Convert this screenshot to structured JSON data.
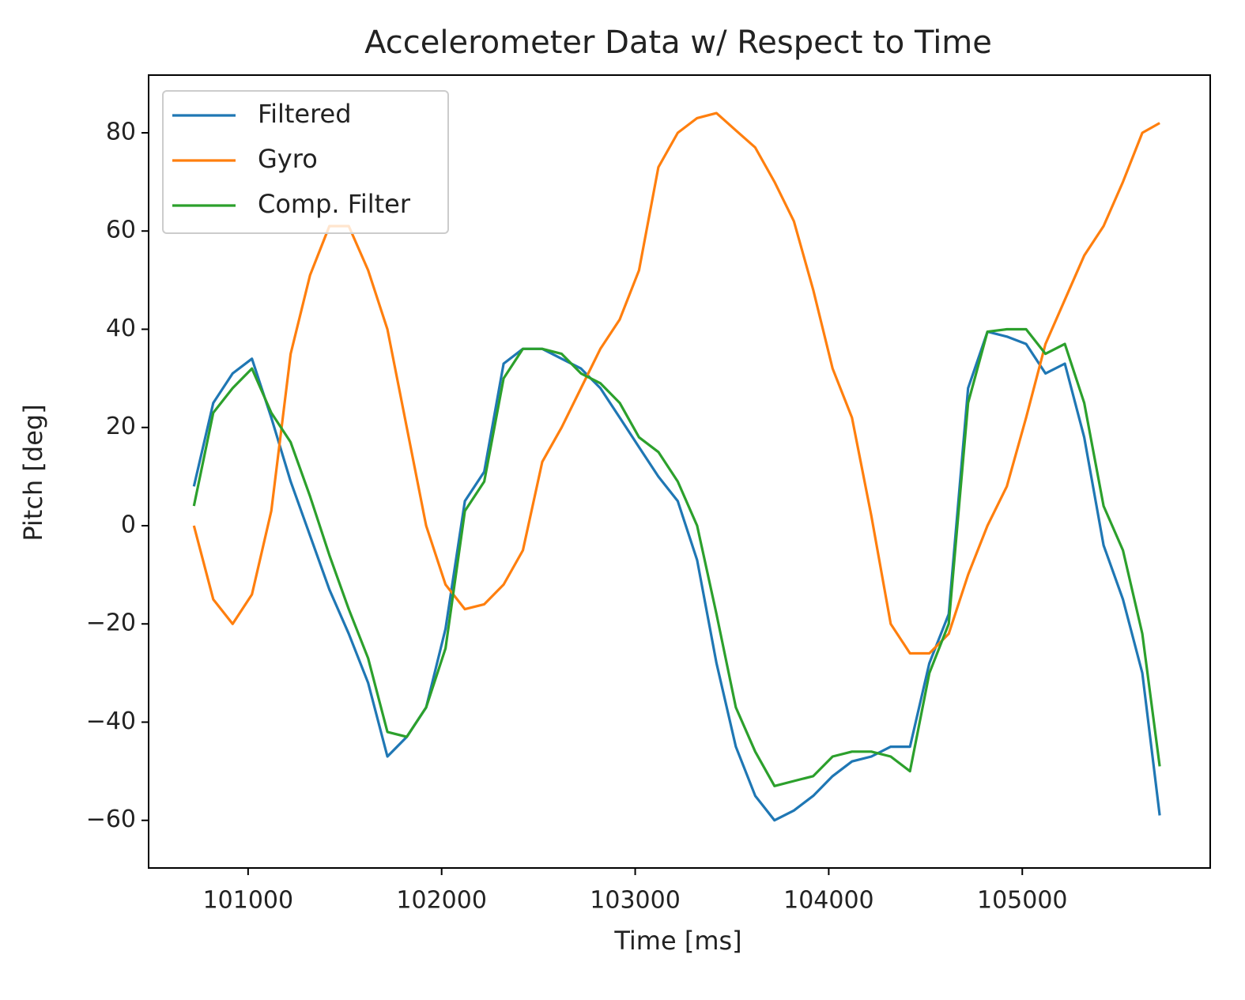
{
  "chart_data": {
    "type": "line",
    "title": "Accelerometer Data w/ Respect to Time",
    "xlabel": "Time [ms]",
    "ylabel": "Pitch [deg]",
    "x": [
      100720,
      100820,
      100920,
      101020,
      101120,
      101220,
      101320,
      101420,
      101520,
      101620,
      101720,
      101820,
      101920,
      102020,
      102120,
      102220,
      102320,
      102420,
      102520,
      102620,
      102720,
      102820,
      102920,
      103020,
      103120,
      103220,
      103320,
      103420,
      103520,
      103620,
      103720,
      103820,
      103920,
      104020,
      104120,
      104220,
      104320,
      104420,
      104520,
      104620,
      104720,
      104820,
      104920,
      105020,
      105120,
      105220,
      105320,
      105420,
      105520,
      105620,
      105710
    ],
    "series": [
      {
        "name": "Filtered",
        "color": "#1f77b4",
        "values": [
          8,
          25,
          31,
          34,
          22,
          9,
          -2,
          -13,
          -22,
          -32,
          -47,
          -43,
          -37,
          -21,
          5,
          11,
          33,
          36,
          36,
          34,
          32,
          28,
          22,
          16,
          10,
          5,
          -7,
          -28,
          -45,
          -55,
          -60,
          -58,
          -55,
          -51,
          -48,
          -47,
          -45,
          -45,
          -28,
          -18,
          28,
          39.5,
          38.5,
          37,
          31,
          33,
          18,
          -4,
          -15,
          -30,
          -59
        ]
      },
      {
        "name": "Gyro",
        "color": "#ff7f0e",
        "values": [
          0,
          -15,
          -20,
          -14,
          3,
          35,
          51,
          61,
          61,
          52,
          40,
          20,
          0,
          -12,
          -17,
          -16,
          -12,
          -5,
          13,
          20,
          28,
          36,
          42,
          52,
          73,
          80,
          83,
          84,
          80.5,
          77,
          70,
          62,
          48,
          32,
          22,
          2,
          -20,
          -26,
          -26,
          -22,
          -10,
          0,
          8,
          22,
          37,
          46,
          55,
          61,
          70,
          80,
          82
        ]
      },
      {
        "name": "Comp. Filter",
        "color": "#2ca02c",
        "values": [
          4,
          23,
          28,
          32,
          23,
          17,
          6,
          -6,
          -17,
          -27,
          -42,
          -43,
          -37,
          -25,
          3,
          9,
          30,
          36,
          36,
          35,
          31,
          29,
          25,
          18,
          15,
          9,
          0,
          -18,
          -37,
          -46,
          -53,
          -52,
          -51,
          -47,
          -46,
          -46,
          -47,
          -50,
          -30,
          -20,
          25,
          39.5,
          40,
          40,
          35,
          37,
          25,
          4,
          -5,
          -22,
          -49
        ]
      }
    ],
    "xlim": [
      100486,
      105971
    ],
    "ylim": [
      -69.7,
      91.75
    ],
    "xticks": [
      101000,
      102000,
      103000,
      104000,
      105000
    ],
    "yticks": [
      {
        "value": -60,
        "label": "−60"
      },
      {
        "value": -40,
        "label": "−40"
      },
      {
        "value": -20,
        "label": "−20"
      },
      0,
      20,
      40,
      60,
      80
    ],
    "legend": "upper left"
  }
}
